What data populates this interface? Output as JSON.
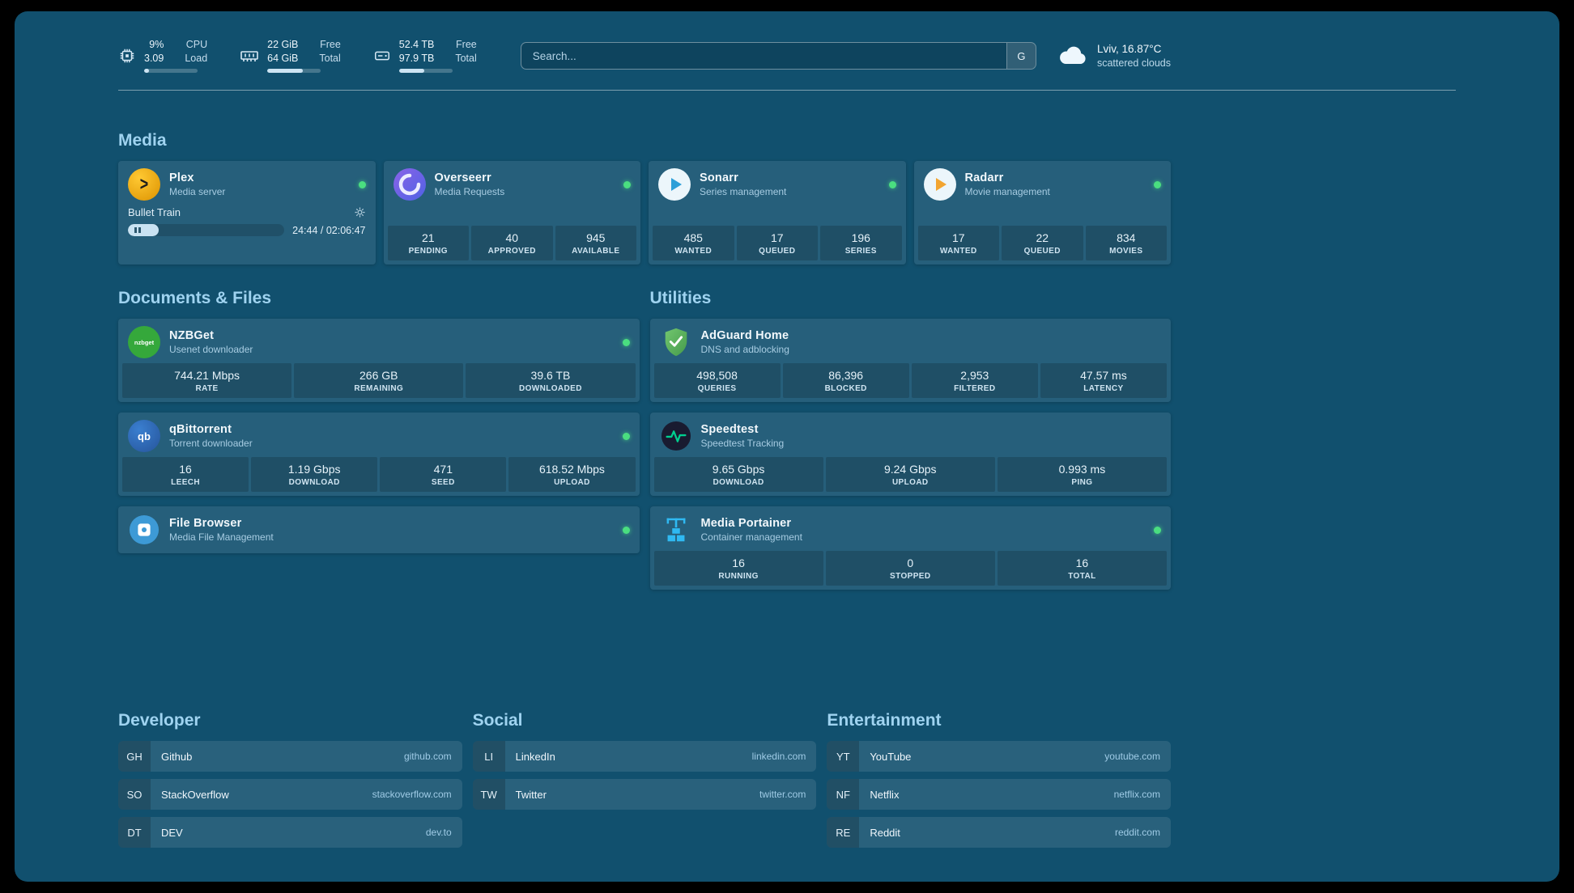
{
  "colors": {
    "background": "#11506e",
    "status_online": "#4ade80",
    "heading": "#9fd3f0",
    "progress_fill": "#cde4f3"
  },
  "header": {
    "cpu": {
      "value1": "9%",
      "value2": "3.09",
      "label1": "CPU",
      "label2": "Load",
      "progress_percent": 9
    },
    "memory": {
      "value1": "22 GiB",
      "value2": "64 GiB",
      "label1": "Free",
      "label2": "Total",
      "progress_percent": 66
    },
    "disk": {
      "value1": "52.4 TB",
      "value2": "97.9 TB",
      "label1": "Free",
      "label2": "Total",
      "progress_percent": 47
    },
    "search": {
      "placeholder": "Search...",
      "button_label": "G"
    },
    "weather": {
      "location": "Lviv, 16.87°C",
      "condition": "scattered clouds"
    }
  },
  "groups": {
    "media": {
      "title": "Media",
      "plex": {
        "name": "Plex",
        "description": "Media server",
        "now_playing": "Bullet Train",
        "time": "24:44 / 02:06:47",
        "progress_percent": 19.5
      },
      "overseerr": {
        "name": "Overseerr",
        "description": "Media Requests",
        "stats": [
          {
            "value": "21",
            "label": "PENDING"
          },
          {
            "value": "40",
            "label": "APPROVED"
          },
          {
            "value": "945",
            "label": "AVAILABLE"
          }
        ]
      },
      "sonarr": {
        "name": "Sonarr",
        "description": "Series management",
        "stats": [
          {
            "value": "485",
            "label": "WANTED"
          },
          {
            "value": "17",
            "label": "QUEUED"
          },
          {
            "value": "196",
            "label": "SERIES"
          }
        ]
      },
      "radarr": {
        "name": "Radarr",
        "description": "Movie management",
        "stats": [
          {
            "value": "17",
            "label": "WANTED"
          },
          {
            "value": "22",
            "label": "QUEUED"
          },
          {
            "value": "834",
            "label": "MOVIES"
          }
        ]
      }
    },
    "documents": {
      "title": "Documents & Files",
      "nzbget": {
        "name": "NZBGet",
        "description": "Usenet downloader",
        "icon_text": "nzbget",
        "stats": [
          {
            "value": "744.21 Mbps",
            "label": "RATE"
          },
          {
            "value": "266 GB",
            "label": "REMAINING"
          },
          {
            "value": "39.6 TB",
            "label": "DOWNLOADED"
          }
        ]
      },
      "qbittorrent": {
        "name": "qBittorrent",
        "description": "Torrent downloader",
        "icon_text": "qb",
        "stats": [
          {
            "value": "16",
            "label": "LEECH"
          },
          {
            "value": "1.19 Gbps",
            "label": "DOWNLOAD"
          },
          {
            "value": "471",
            "label": "SEED"
          },
          {
            "value": "618.52 Mbps",
            "label": "UPLOAD"
          }
        ]
      },
      "filebrowser": {
        "name": "File Browser",
        "description": "Media File Management"
      }
    },
    "utilities": {
      "title": "Utilities",
      "adguard": {
        "name": "AdGuard Home",
        "description": "DNS and adblocking",
        "stats": [
          {
            "value": "498,508",
            "label": "QUERIES"
          },
          {
            "value": "86,396",
            "label": "BLOCKED"
          },
          {
            "value": "2,953",
            "label": "FILTERED"
          },
          {
            "value": "47.57 ms",
            "label": "LATENCY"
          }
        ]
      },
      "speedtest": {
        "name": "Speedtest",
        "description": "Speedtest Tracking",
        "stats": [
          {
            "value": "9.65 Gbps",
            "label": "DOWNLOAD"
          },
          {
            "value": "9.24 Gbps",
            "label": "UPLOAD"
          },
          {
            "value": "0.993 ms",
            "label": "PING"
          }
        ]
      },
      "portainer": {
        "name": "Media Portainer",
        "description": "Container management",
        "stats": [
          {
            "value": "16",
            "label": "RUNNING"
          },
          {
            "value": "0",
            "label": "STOPPED"
          },
          {
            "value": "16",
            "label": "TOTAL"
          }
        ]
      }
    }
  },
  "bookmarks": {
    "developer": {
      "title": "Developer",
      "items": [
        {
          "abbr": "GH",
          "name": "Github",
          "url": "github.com"
        },
        {
          "abbr": "SO",
          "name": "StackOverflow",
          "url": "stackoverflow.com"
        },
        {
          "abbr": "DT",
          "name": "DEV",
          "url": "dev.to"
        }
      ]
    },
    "social": {
      "title": "Social",
      "items": [
        {
          "abbr": "LI",
          "name": "LinkedIn",
          "url": "linkedin.com"
        },
        {
          "abbr": "TW",
          "name": "Twitter",
          "url": "twitter.com"
        }
      ]
    },
    "entertainment": {
      "title": "Entertainment",
      "items": [
        {
          "abbr": "YT",
          "name": "YouTube",
          "url": "youtube.com"
        },
        {
          "abbr": "NF",
          "name": "Netflix",
          "url": "netflix.com"
        },
        {
          "abbr": "RE",
          "name": "Reddit",
          "url": "reddit.com"
        }
      ]
    }
  }
}
